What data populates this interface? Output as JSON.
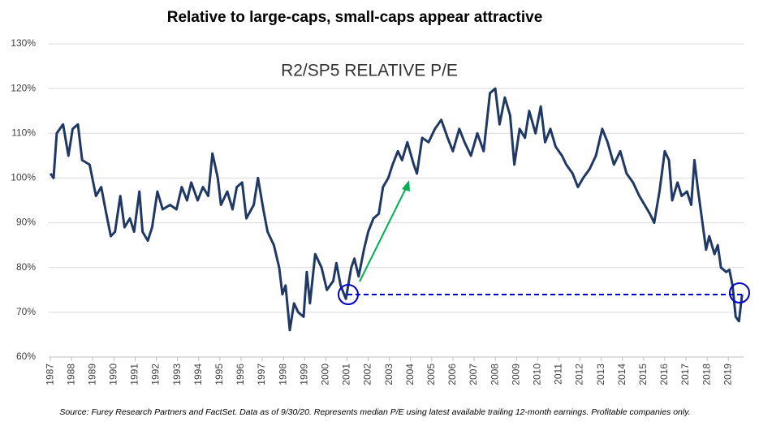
{
  "chart_data": {
    "type": "line",
    "title": "Relative to large-caps, small-caps appear attractive",
    "subtitle": "R2/SP5 RELATIVE P/E",
    "source": "Source: Furey Research Partners and FactSet.  Data as of 9/30/20.  Represents median P/E using latest available trailing 12-month earnings.  Profitable companies only.",
    "x": [
      1987.0,
      1987.15,
      1987.3,
      1987.6,
      1987.85,
      1988.05,
      1988.3,
      1988.5,
      1988.85,
      1989.15,
      1989.4,
      1989.6,
      1989.85,
      1990.05,
      1990.3,
      1990.5,
      1990.75,
      1990.95,
      1991.2,
      1991.35,
      1991.6,
      1991.8,
      1992.05,
      1992.3,
      1992.65,
      1992.95,
      1993.2,
      1993.45,
      1993.65,
      1993.95,
      1994.2,
      1994.45,
      1994.65,
      1994.9,
      1995.05,
      1995.35,
      1995.6,
      1995.8,
      1996.05,
      1996.25,
      1996.6,
      1996.8,
      1997.05,
      1997.25,
      1997.55,
      1997.8,
      1997.95,
      1998.1,
      1998.3,
      1998.5,
      1998.7,
      1998.95,
      1999.1,
      1999.25,
      1999.5,
      1999.8,
      2000.05,
      2000.35,
      2000.5,
      2000.7,
      2000.95,
      2001.2,
      2001.35,
      2001.55,
      2001.8,
      2002.0,
      2002.25,
      2002.5,
      2002.7,
      2002.95,
      2003.15,
      2003.4,
      2003.6,
      2003.85,
      2004.15,
      2004.3,
      2004.55,
      2004.85,
      2005.15,
      2005.45,
      2005.75,
      2006.0,
      2006.3,
      2006.55,
      2006.85,
      2007.15,
      2007.45,
      2007.75,
      2008.0,
      2008.2,
      2008.45,
      2008.7,
      2008.9,
      2009.15,
      2009.4,
      2009.6,
      2009.9,
      2010.15,
      2010.35,
      2010.6,
      2010.85,
      2011.15,
      2011.35,
      2011.65,
      2011.9,
      2012.15,
      2012.45,
      2012.75,
      2013.05,
      2013.3,
      2013.6,
      2013.9,
      2014.2,
      2014.5,
      2014.8,
      2015.05,
      2015.3,
      2015.5,
      2015.75,
      2016.0,
      2016.2,
      2016.35,
      2016.6,
      2016.8,
      2017.05,
      2017.25,
      2017.4,
      2017.55,
      2017.75,
      2017.95,
      2018.1,
      2018.35,
      2018.5,
      2018.65,
      2018.9,
      2019.05,
      2019.2,
      2019.35,
      2019.5,
      2019.65
    ],
    "series": [
      {
        "name": "R2/SP5 Relative P/E",
        "color": "#203864",
        "values": [
          101,
          100,
          110,
          112,
          105,
          111,
          112,
          104,
          103,
          96,
          98,
          93,
          87,
          88,
          96,
          89,
          91,
          88,
          97,
          88,
          86,
          89,
          97,
          93,
          94,
          93,
          98,
          95,
          99,
          95,
          98,
          96,
          105.5,
          100,
          94,
          97,
          93,
          98,
          99,
          91,
          94,
          100,
          93,
          88,
          85,
          80,
          74,
          76,
          66,
          72,
          70,
          69,
          79,
          72,
          83,
          80,
          75,
          77,
          81,
          76,
          73,
          80,
          82,
          78,
          84,
          88,
          91,
          92,
          98,
          100,
          103,
          106,
          104,
          108,
          103,
          101,
          109,
          108,
          111,
          113,
          109,
          106,
          111,
          108,
          105,
          110,
          106,
          119,
          120,
          112,
          118,
          114,
          103,
          111,
          109,
          115,
          110,
          116,
          108,
          111,
          107,
          105,
          103,
          101,
          98,
          100,
          102,
          105,
          111,
          108,
          103,
          106,
          101,
          99,
          96,
          94,
          92,
          90,
          97,
          106,
          104,
          95,
          99,
          96,
          97,
          94,
          104,
          98,
          91,
          84,
          87,
          83,
          85,
          80,
          79,
          79.5,
          76,
          69,
          68,
          74
        ]
      }
    ],
    "xlim": [
      1986.92,
      2019.72
    ],
    "xticks": [
      1987,
      1988,
      1989,
      1990,
      1991,
      1992,
      1993,
      1994,
      1995,
      1996,
      1997,
      1998,
      1999,
      2000,
      2001,
      2002,
      2003,
      2004,
      2005,
      2006,
      2007,
      2008,
      2009,
      2010,
      2011,
      2012,
      2013,
      2014,
      2015,
      2016,
      2017,
      2018,
      2019
    ],
    "ylim": [
      60,
      130
    ],
    "yticks": [
      {
        "value": 60,
        "label": "60%"
      },
      {
        "value": 70,
        "label": "70%"
      },
      {
        "value": 80,
        "label": "80%"
      },
      {
        "value": 90,
        "label": "90%"
      },
      {
        "value": 100,
        "label": "100%"
      },
      {
        "value": 110,
        "label": "110%"
      },
      {
        "value": 120,
        "label": "120%"
      },
      {
        "value": 130,
        "label": "130%"
      }
    ],
    "grid": true
  }
}
